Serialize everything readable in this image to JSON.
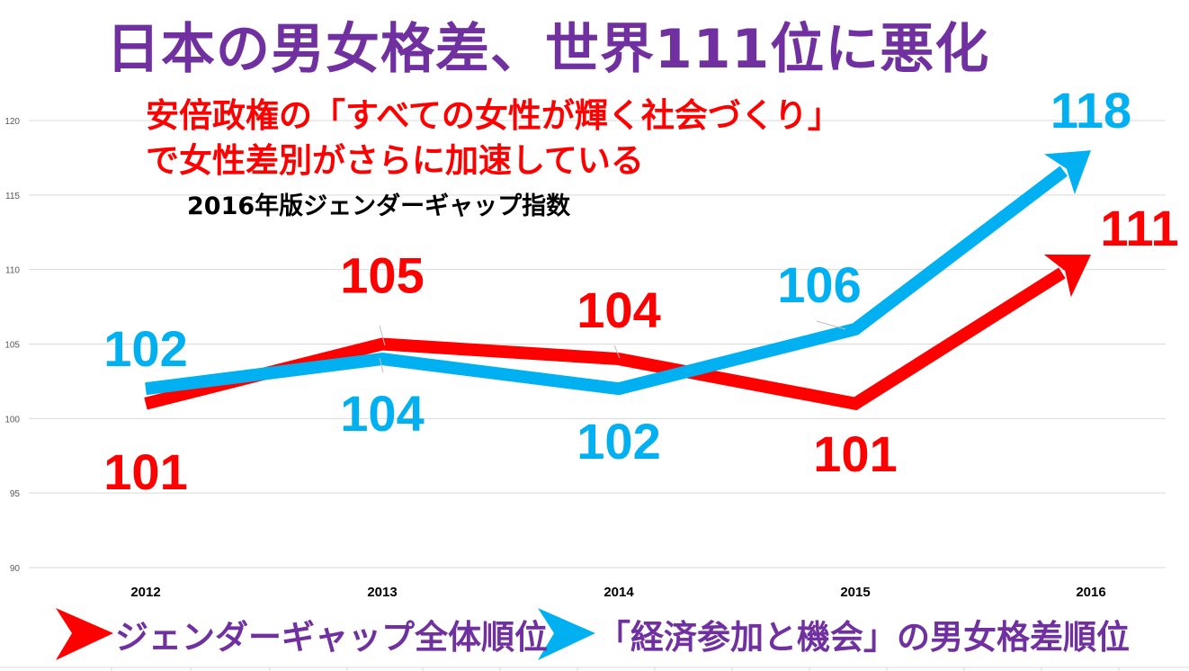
{
  "title": "日本の男女格差、世界111位に悪化",
  "subtitle_lines": [
    "安倍政権の「すべての女性が輝く社会づくり」",
    "で女性差別がさらに加速している"
  ],
  "caption": "2016年版ジェンダーギャップ指数",
  "legend": {
    "overall_label": "ジェンダーギャップ全体順位",
    "economic_label": "「経済参加と機会」の男女格差順位"
  },
  "colors": {
    "title": "#7030a0",
    "overall": "#ff0000",
    "economic": "#00b0f0",
    "grid": "#d9d9d9"
  },
  "chart_data": {
    "type": "line",
    "categories": [
      "2012",
      "2013",
      "2014",
      "2015",
      "2016"
    ],
    "series": [
      {
        "name": "ジェンダーギャップ全体順位",
        "values": [
          101,
          105,
          104,
          101,
          111
        ],
        "labels": [
          "101",
          "105",
          "104",
          "101",
          "111"
        ],
        "color": "#ff0000"
      },
      {
        "name": "「経済参加と機会」の男女格差順位",
        "values": [
          102,
          104,
          102,
          106,
          118
        ],
        "labels": [
          "102",
          "104",
          "102",
          "106",
          "118"
        ],
        "color": "#00b0f0"
      }
    ],
    "yticks": [
      "90",
      "95",
      "100",
      "105",
      "110",
      "115",
      "120"
    ],
    "ylim": [
      90,
      120
    ],
    "grid": true,
    "legend_position": "bottom"
  }
}
